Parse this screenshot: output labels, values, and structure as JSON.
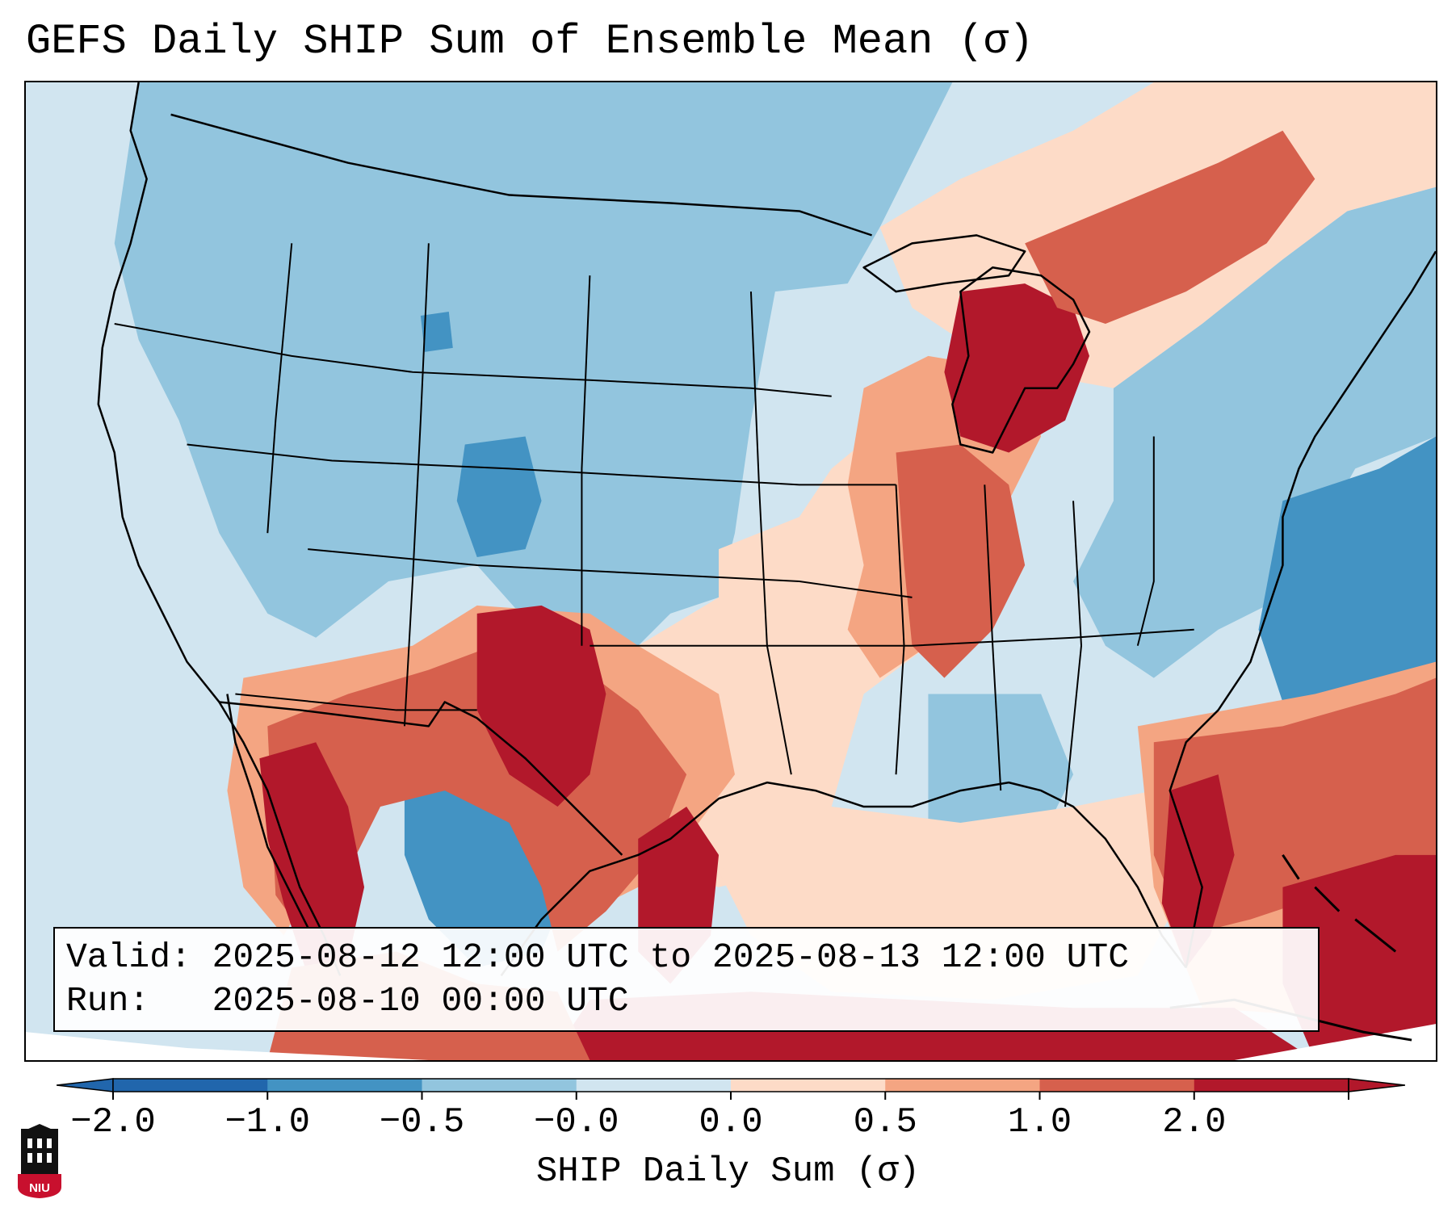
{
  "title": "GEFS Daily SHIP Sum of Ensemble Mean (σ)",
  "info": {
    "valid_line": "Valid: 2025-08-12 12:00 UTC to 2025-08-13 12:00 UTC",
    "run_line": "Run:   2025-08-10 00:00 UTC"
  },
  "colorbar": {
    "label": "SHIP Daily Sum (σ)",
    "tick_labels": [
      "−2.0",
      "−1.0",
      "−0.5",
      "−0.0",
      "0.0",
      "0.5",
      "1.0",
      "2.0"
    ],
    "colors": [
      "#2166ac",
      "#4393c3",
      "#92c5de",
      "#d1e5f0",
      "#fddbc7",
      "#f4a582",
      "#d6604d",
      "#b2182b"
    ],
    "extend": "both"
  },
  "logo": {
    "text": "NIU",
    "colors": {
      "shield": "#c8102e",
      "tower": "#111111"
    }
  },
  "map": {
    "region": "Contiguous United States, southern Canada, northern Mexico, Gulf of Mexico",
    "highlights": [
      {
        "region": "Southwest / New Mexico / Arizona / northern Mexico",
        "category": "high"
      },
      {
        "region": "Michigan / Great Lakes / Ontario",
        "category": "high"
      },
      {
        "region": "Gulf Coast / Florida / Caribbean",
        "category": "high"
      },
      {
        "region": "Northern Plains / Rockies / Pacific Northwest",
        "category": "below-normal"
      },
      {
        "region": "Western Atlantic offshore",
        "category": "low"
      }
    ]
  }
}
